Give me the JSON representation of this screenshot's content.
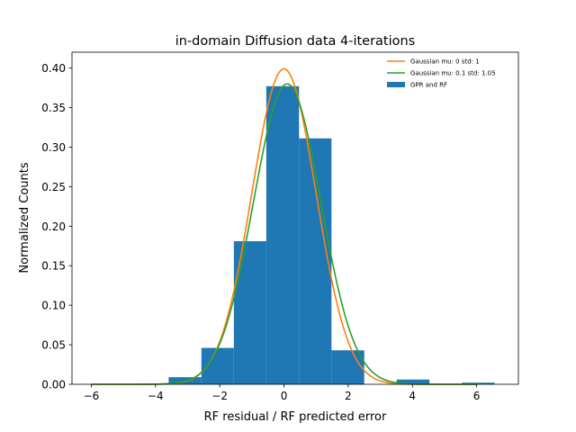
{
  "chart_data": {
    "type": "bar",
    "title": "in-domain Diffusion data 4-iterations",
    "xlabel": "RF residual / RF predicted error",
    "ylabel": "Normalized Counts",
    "xlim": [
      -6.6,
      7.3
    ],
    "ylim": [
      0,
      0.42
    ],
    "xticks": [
      -6,
      -4,
      -2,
      0,
      2,
      4,
      6
    ],
    "xtick_labels": [
      "−6",
      "−4",
      "−2",
      "0",
      "2",
      "4",
      "6"
    ],
    "yticks": [
      0,
      0.05,
      0.1,
      0.15,
      0.2,
      0.25,
      0.3,
      0.35,
      0.4
    ],
    "ytick_labels": [
      "0.00",
      "0.05",
      "0.10",
      "0.15",
      "0.20",
      "0.25",
      "0.30",
      "0.35",
      "0.40"
    ],
    "grid": false,
    "legend_position": "top-right",
    "histogram": {
      "name": "GPR and RF",
      "color": "#1f77b4",
      "bin_edges": [
        -3.59,
        -2.57,
        -1.56,
        -0.55,
        0.47,
        1.48,
        2.5,
        3.51,
        4.53,
        5.54,
        6.56
      ],
      "values": [
        0.009,
        0.046,
        0.181,
        0.377,
        0.311,
        0.043,
        0.0,
        0.006,
        0.0,
        0.002
      ]
    },
    "series": [
      {
        "name": "Gaussian mu: 0 std: 1",
        "type": "line",
        "mu": 0,
        "std": 1,
        "color": "#ff7f0e"
      },
      {
        "name": "Gaussian mu: 0.1 std: 1.05",
        "type": "line",
        "mu": 0.1,
        "std": 1.05,
        "color": "#2ca02c"
      }
    ],
    "curve_x_range": [
      -6,
      6
    ]
  }
}
